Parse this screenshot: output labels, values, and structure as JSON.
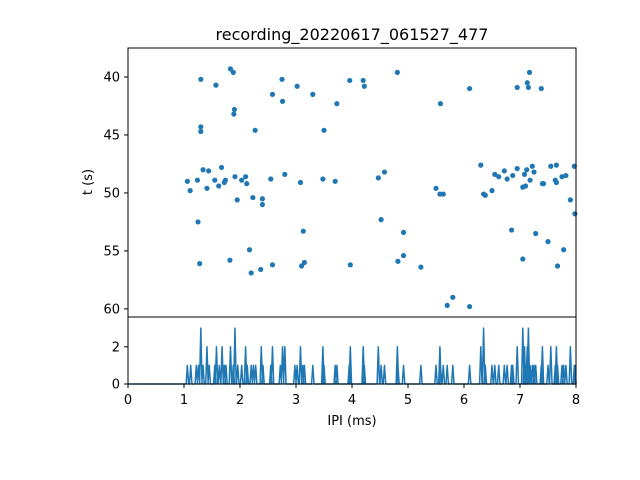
{
  "chart_data": [
    {
      "type": "scatter",
      "title": "recording_20220617_061527_477",
      "ylabel": "t (s)",
      "xlim": [
        0,
        8
      ],
      "ylim": [
        60.7,
        37.5
      ],
      "yticks": [
        40,
        45,
        50,
        55,
        60
      ],
      "y_inverted": true,
      "color": "#1f77b4",
      "points": [
        [
          1.3,
          40.2
        ],
        [
          1.83,
          39.3
        ],
        [
          1.88,
          39.6
        ],
        [
          1.57,
          40.7
        ],
        [
          2.58,
          41.5
        ],
        [
          2.75,
          40.2
        ],
        [
          2.76,
          42.1
        ],
        [
          3.02,
          40.8
        ],
        [
          3.3,
          41.5
        ],
        [
          3.73,
          42.3
        ],
        [
          3.96,
          40.3
        ],
        [
          4.2,
          40.3
        ],
        [
          4.22,
          40.8
        ],
        [
          4.81,
          39.6
        ],
        [
          5.58,
          42.3
        ],
        [
          6.1,
          41.0
        ],
        [
          6.95,
          40.9
        ],
        [
          7.13,
          40.5
        ],
        [
          7.17,
          39.6
        ],
        [
          7.15,
          40.9
        ],
        [
          7.38,
          41.0
        ],
        [
          1.9,
          42.8
        ],
        [
          1.89,
          43.2
        ],
        [
          1.3,
          44.3
        ],
        [
          1.3,
          44.7
        ],
        [
          2.27,
          44.6
        ],
        [
          3.5,
          44.6
        ],
        [
          1.06,
          49.0
        ],
        [
          1.11,
          49.8
        ],
        [
          1.24,
          48.9
        ],
        [
          1.34,
          48.0
        ],
        [
          1.41,
          49.6
        ],
        [
          1.44,
          48.1
        ],
        [
          1.55,
          48.9
        ],
        [
          1.62,
          49.4
        ],
        [
          1.67,
          47.8
        ],
        [
          1.72,
          49.1
        ],
        [
          1.74,
          48.9
        ],
        [
          1.91,
          48.6
        ],
        [
          1.95,
          50.6
        ],
        [
          2.03,
          48.9
        ],
        [
          2.1,
          48.6
        ],
        [
          2.12,
          49.2
        ],
        [
          2.23,
          50.4
        ],
        [
          2.4,
          50.5
        ],
        [
          2.4,
          51.0
        ],
        [
          2.55,
          48.8
        ],
        [
          2.8,
          48.4
        ],
        [
          3.08,
          49.1
        ],
        [
          3.48,
          48.8
        ],
        [
          3.7,
          49.0
        ],
        [
          4.47,
          48.7
        ],
        [
          4.58,
          48.2
        ],
        [
          5.5,
          49.6
        ],
        [
          5.57,
          50.1
        ],
        [
          5.63,
          50.1
        ],
        [
          6.3,
          47.6
        ],
        [
          6.35,
          50.1
        ],
        [
          6.38,
          50.2
        ],
        [
          6.5,
          49.8
        ],
        [
          6.55,
          48.4
        ],
        [
          6.62,
          48.6
        ],
        [
          6.72,
          48.1
        ],
        [
          6.77,
          48.8
        ],
        [
          6.87,
          48.5
        ],
        [
          6.95,
          47.9
        ],
        [
          7.05,
          49.5
        ],
        [
          7.08,
          48.4
        ],
        [
          7.1,
          49.4
        ],
        [
          7.12,
          48.0
        ],
        [
          7.18,
          48.9
        ],
        [
          7.22,
          47.7
        ],
        [
          7.25,
          48.2
        ],
        [
          7.4,
          49.2
        ],
        [
          7.42,
          49.2
        ],
        [
          7.55,
          47.7
        ],
        [
          7.63,
          48.9
        ],
        [
          7.65,
          49.1
        ],
        [
          7.65,
          47.6
        ],
        [
          7.75,
          48.6
        ],
        [
          7.82,
          48.5
        ],
        [
          7.9,
          50.6
        ],
        [
          7.97,
          47.7
        ],
        [
          7.98,
          51.8
        ],
        [
          1.25,
          52.5
        ],
        [
          1.28,
          56.1
        ],
        [
          1.82,
          55.8
        ],
        [
          2.17,
          54.9
        ],
        [
          2.2,
          56.9
        ],
        [
          2.37,
          56.6
        ],
        [
          2.58,
          56.2
        ],
        [
          3.13,
          53.3
        ],
        [
          3.1,
          56.3
        ],
        [
          3.15,
          56.0
        ],
        [
          3.97,
          56.2
        ],
        [
          4.52,
          52.3
        ],
        [
          4.82,
          55.9
        ],
        [
          4.92,
          53.4
        ],
        [
          4.92,
          55.4
        ],
        [
          5.23,
          56.4
        ],
        [
          5.7,
          59.7
        ],
        [
          5.8,
          59.0
        ],
        [
          6.1,
          59.8
        ],
        [
          6.85,
          53.2
        ],
        [
          7.05,
          55.7
        ],
        [
          7.28,
          53.5
        ],
        [
          7.5,
          54.2
        ],
        [
          7.67,
          56.3
        ],
        [
          7.78,
          54.9
        ]
      ]
    },
    {
      "type": "line",
      "xlabel": "IPI (ms)",
      "xlim": [
        0,
        8
      ],
      "ylim": [
        0,
        3.6
      ],
      "yticks": [
        0,
        2
      ],
      "xticks": [
        0,
        1,
        2,
        3,
        4,
        5,
        6,
        7,
        8
      ],
      "color": "#1f77b4",
      "peaks": [
        [
          1.06,
          1
        ],
        [
          1.12,
          1
        ],
        [
          1.22,
          1
        ],
        [
          1.26,
          1
        ],
        [
          1.3,
          3
        ],
        [
          1.34,
          1
        ],
        [
          1.41,
          2
        ],
        [
          1.45,
          1
        ],
        [
          1.55,
          1
        ],
        [
          1.58,
          2
        ],
        [
          1.63,
          1
        ],
        [
          1.68,
          2
        ],
        [
          1.72,
          1
        ],
        [
          1.75,
          1
        ],
        [
          1.83,
          2
        ],
        [
          1.88,
          1
        ],
        [
          1.91,
          3
        ],
        [
          1.96,
          1
        ],
        [
          2.03,
          1
        ],
        [
          2.1,
          2
        ],
        [
          2.13,
          1
        ],
        [
          2.2,
          1
        ],
        [
          2.24,
          1
        ],
        [
          2.28,
          1
        ],
        [
          2.38,
          2
        ],
        [
          2.41,
          1
        ],
        [
          2.55,
          1
        ],
        [
          2.58,
          2
        ],
        [
          2.72,
          1
        ],
        [
          2.76,
          2
        ],
        [
          2.8,
          2
        ],
        [
          2.98,
          1
        ],
        [
          3.02,
          1
        ],
        [
          3.08,
          2
        ],
        [
          3.12,
          1
        ],
        [
          3.15,
          1
        ],
        [
          3.3,
          1
        ],
        [
          3.48,
          2
        ],
        [
          3.5,
          1
        ],
        [
          3.7,
          1
        ],
        [
          3.73,
          1
        ],
        [
          3.95,
          1
        ],
        [
          3.97,
          2
        ],
        [
          4.2,
          2
        ],
        [
          4.22,
          1
        ],
        [
          4.47,
          2
        ],
        [
          4.52,
          1
        ],
        [
          4.58,
          1
        ],
        [
          4.81,
          2
        ],
        [
          4.82,
          1
        ],
        [
          4.92,
          1
        ],
        [
          5.23,
          1
        ],
        [
          5.5,
          1
        ],
        [
          5.57,
          2
        ],
        [
          5.58,
          1
        ],
        [
          5.63,
          1
        ],
        [
          5.7,
          1
        ],
        [
          5.8,
          1
        ],
        [
          6.1,
          1
        ],
        [
          6.3,
          2
        ],
        [
          6.35,
          3
        ],
        [
          6.38,
          1
        ],
        [
          6.5,
          1
        ],
        [
          6.55,
          1
        ],
        [
          6.62,
          1
        ],
        [
          6.72,
          1
        ],
        [
          6.77,
          1
        ],
        [
          6.85,
          1
        ],
        [
          6.87,
          1
        ],
        [
          6.95,
          2
        ],
        [
          7.05,
          3
        ],
        [
          7.08,
          2
        ],
        [
          7.1,
          1
        ],
        [
          7.13,
          2
        ],
        [
          7.15,
          3
        ],
        [
          7.18,
          1
        ],
        [
          7.22,
          1
        ],
        [
          7.25,
          1
        ],
        [
          7.28,
          1
        ],
        [
          7.38,
          1
        ],
        [
          7.4,
          2
        ],
        [
          7.5,
          1
        ],
        [
          7.55,
          2
        ],
        [
          7.63,
          1
        ],
        [
          7.65,
          2
        ],
        [
          7.67,
          1
        ],
        [
          7.75,
          1
        ],
        [
          7.78,
          1
        ],
        [
          7.82,
          1
        ],
        [
          7.9,
          2
        ],
        [
          7.97,
          1
        ],
        [
          7.98,
          1
        ]
      ]
    }
  ]
}
